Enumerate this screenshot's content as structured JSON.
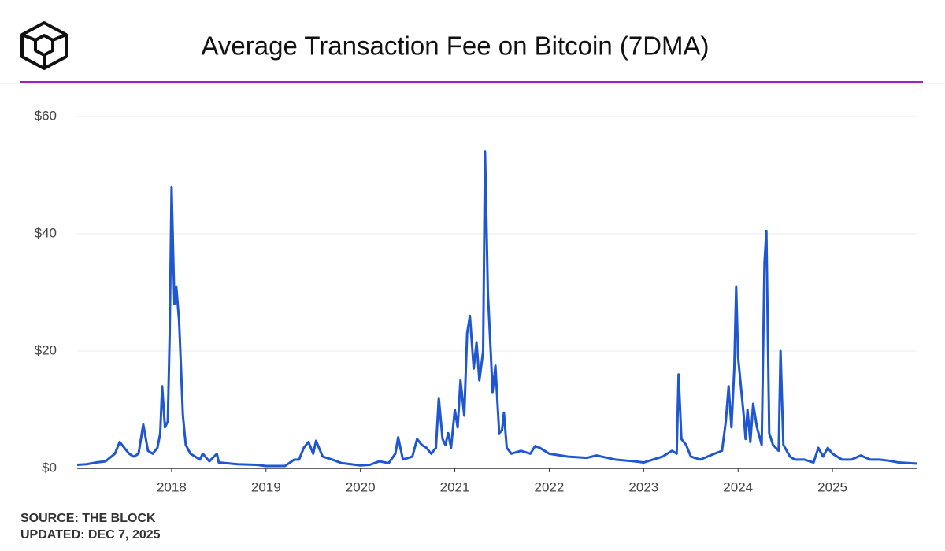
{
  "chart_data": {
    "type": "line",
    "title": "Average Transaction Fee on Bitcoin (7DMA)",
    "source": "SOURCE: THE BLOCK",
    "updated": "UPDATED: DEC 7, 2025",
    "xlim": [
      2017.0,
      2025.9
    ],
    "xticks": [
      2018,
      2019,
      2020,
      2021,
      2022,
      2023,
      2024,
      2025
    ],
    "ylim": [
      0,
      60
    ],
    "yticks": [
      {
        "value": 0,
        "label": "$0"
      },
      {
        "value": 20,
        "label": "$20"
      },
      {
        "value": 40,
        "label": "$40"
      },
      {
        "value": 60,
        "label": "$60"
      }
    ],
    "grid": true,
    "x": [
      2017.0,
      2017.1,
      2017.2,
      2017.3,
      2017.4,
      2017.45,
      2017.5,
      2017.55,
      2017.6,
      2017.65,
      2017.7,
      2017.75,
      2017.8,
      2017.85,
      2017.88,
      2017.9,
      2017.93,
      2017.96,
      2017.98,
      2018.0,
      2018.03,
      2018.05,
      2018.08,
      2018.12,
      2018.15,
      2018.2,
      2018.3,
      2018.33,
      2018.4,
      2018.48,
      2018.5,
      2018.7,
      2018.9,
      2019.0,
      2019.2,
      2019.3,
      2019.35,
      2019.4,
      2019.45,
      2019.5,
      2019.53,
      2019.6,
      2019.7,
      2019.8,
      2019.9,
      2020.0,
      2020.1,
      2020.2,
      2020.3,
      2020.37,
      2020.4,
      2020.45,
      2020.55,
      2020.6,
      2020.65,
      2020.7,
      2020.75,
      2020.8,
      2020.83,
      2020.87,
      2020.9,
      2020.93,
      2020.96,
      2021.0,
      2021.03,
      2021.06,
      2021.1,
      2021.13,
      2021.16,
      2021.2,
      2021.23,
      2021.26,
      2021.3,
      2021.32,
      2021.35,
      2021.38,
      2021.4,
      2021.43,
      2021.47,
      2021.5,
      2021.52,
      2021.55,
      2021.6,
      2021.7,
      2021.8,
      2021.85,
      2021.9,
      2022.0,
      2022.2,
      2022.4,
      2022.5,
      2022.7,
      2022.9,
      2023.0,
      2023.2,
      2023.3,
      2023.35,
      2023.37,
      2023.4,
      2023.45,
      2023.5,
      2023.6,
      2023.75,
      2023.83,
      2023.87,
      2023.9,
      2023.93,
      2023.96,
      2023.98,
      2024.0,
      2024.03,
      2024.06,
      2024.08,
      2024.1,
      2024.13,
      2024.16,
      2024.2,
      2024.25,
      2024.28,
      2024.3,
      2024.33,
      2024.37,
      2024.43,
      2024.45,
      2024.48,
      2024.55,
      2024.6,
      2024.7,
      2024.8,
      2024.85,
      2024.9,
      2024.95,
      2025.0,
      2025.1,
      2025.2,
      2025.3,
      2025.4,
      2025.5,
      2025.6,
      2025.7,
      2025.8,
      2025.9
    ],
    "series": [
      {
        "name": "Average Transaction Fee",
        "color": "#1f56d1",
        "values": [
          0.6,
          0.7,
          1.0,
          1.2,
          2.5,
          4.5,
          3.5,
          2.5,
          2.0,
          2.5,
          7.5,
          3.0,
          2.5,
          3.5,
          6,
          14,
          7,
          8,
          23,
          48,
          28,
          31,
          25,
          9,
          4,
          2.5,
          1.5,
          2.5,
          1.2,
          2.5,
          1.0,
          0.7,
          0.6,
          0.4,
          0.4,
          1.5,
          1.5,
          3.5,
          4.5,
          2.5,
          4.7,
          2.0,
          1.5,
          0.9,
          0.7,
          0.5,
          0.6,
          1.2,
          0.9,
          2.5,
          5.3,
          1.5,
          2.0,
          5.0,
          4.0,
          3.5,
          2.5,
          3.5,
          12,
          5,
          4,
          6,
          3.5,
          10,
          7,
          15,
          9,
          23,
          26,
          17,
          21.5,
          15,
          20,
          54,
          30,
          20,
          13,
          17.5,
          6,
          6.5,
          9.5,
          3.5,
          2.5,
          3,
          2.5,
          3.8,
          3.5,
          2.5,
          2.0,
          1.8,
          2.2,
          1.5,
          1.2,
          1.0,
          2.0,
          3.0,
          2.5,
          16,
          5,
          4,
          2,
          1.5,
          2.5,
          3,
          8,
          14,
          7,
          17,
          31,
          19,
          14,
          9,
          5,
          10,
          4.5,
          11,
          7,
          4,
          35,
          40.5,
          6,
          4,
          3,
          20,
          4,
          2,
          1.5,
          1.5,
          1.0,
          3.5,
          2,
          3.5,
          2.5,
          1.5,
          1.5,
          2.2,
          1.5,
          1.5,
          1.3,
          1.0,
          0.9,
          0.8
        ]
      }
    ]
  }
}
